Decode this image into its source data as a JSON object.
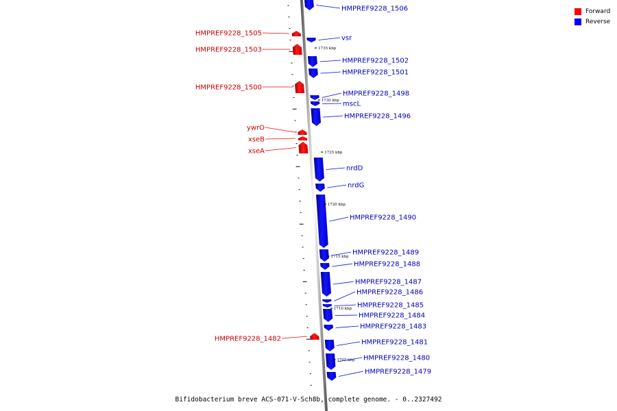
{
  "legend": {
    "forward_label": "Forward",
    "reverse_label": "Reverse"
  },
  "colors": {
    "forward": "#ff0000",
    "reverse": "#0000ff",
    "forward_text": "#cc0000",
    "reverse_text": "#0000bb"
  },
  "caption": "Bifidobacterium breve ACS-071-V-Sch8b, complete genome. - 0..2327492",
  "genes": [
    {
      "id": "HMPREF9228_1506",
      "strand": "reverse"
    },
    {
      "id": "HMPREF9228_1505",
      "strand": "forward"
    },
    {
      "id": "vsr",
      "strand": "reverse"
    },
    {
      "id": "HMPREF9228_1503",
      "strand": "forward"
    },
    {
      "id": "HMPREF9228_1502",
      "strand": "reverse"
    },
    {
      "id": "HMPREF9228_1501",
      "strand": "reverse"
    },
    {
      "id": "HMPREF9228_1500",
      "strand": "forward"
    },
    {
      "id": "HMPREF9228_1498",
      "strand": "reverse"
    },
    {
      "id": "mscL",
      "strand": "reverse"
    },
    {
      "id": "HMPREF9228_1496",
      "strand": "reverse"
    },
    {
      "id": "ywrO",
      "strand": "forward"
    },
    {
      "id": "xseB",
      "strand": "forward"
    },
    {
      "id": "xseA",
      "strand": "forward"
    },
    {
      "id": "nrdD",
      "strand": "reverse"
    },
    {
      "id": "nrdG",
      "strand": "reverse"
    },
    {
      "id": "HMPREF9228_1490",
      "strand": "reverse"
    },
    {
      "id": "HMPREF9228_1489",
      "strand": "reverse"
    },
    {
      "id": "HMPREF9228_1488",
      "strand": "reverse"
    },
    {
      "id": "HMPREF9228_1487",
      "strand": "reverse"
    },
    {
      "id": "HMPREF9228_1486",
      "strand": "reverse"
    },
    {
      "id": "HMPREF9228_1485",
      "strand": "reverse"
    },
    {
      "id": "HMPREF9228_1484",
      "strand": "reverse"
    },
    {
      "id": "HMPREF9228_1483",
      "strand": "reverse"
    },
    {
      "id": "HMPREF9228_1482",
      "strand": "forward"
    },
    {
      "id": "HMPREF9228_1481",
      "strand": "reverse"
    },
    {
      "id": "HMPREF9228_1480",
      "strand": "reverse"
    },
    {
      "id": "HMPREF9228_1479",
      "strand": "reverse"
    }
  ],
  "ticks": [
    "1735 kbp",
    "1730 kbp",
    "1725 kbp",
    "1720 kbp",
    "1715 kbp",
    "1710 kbp",
    "1705 kbp"
  ]
}
